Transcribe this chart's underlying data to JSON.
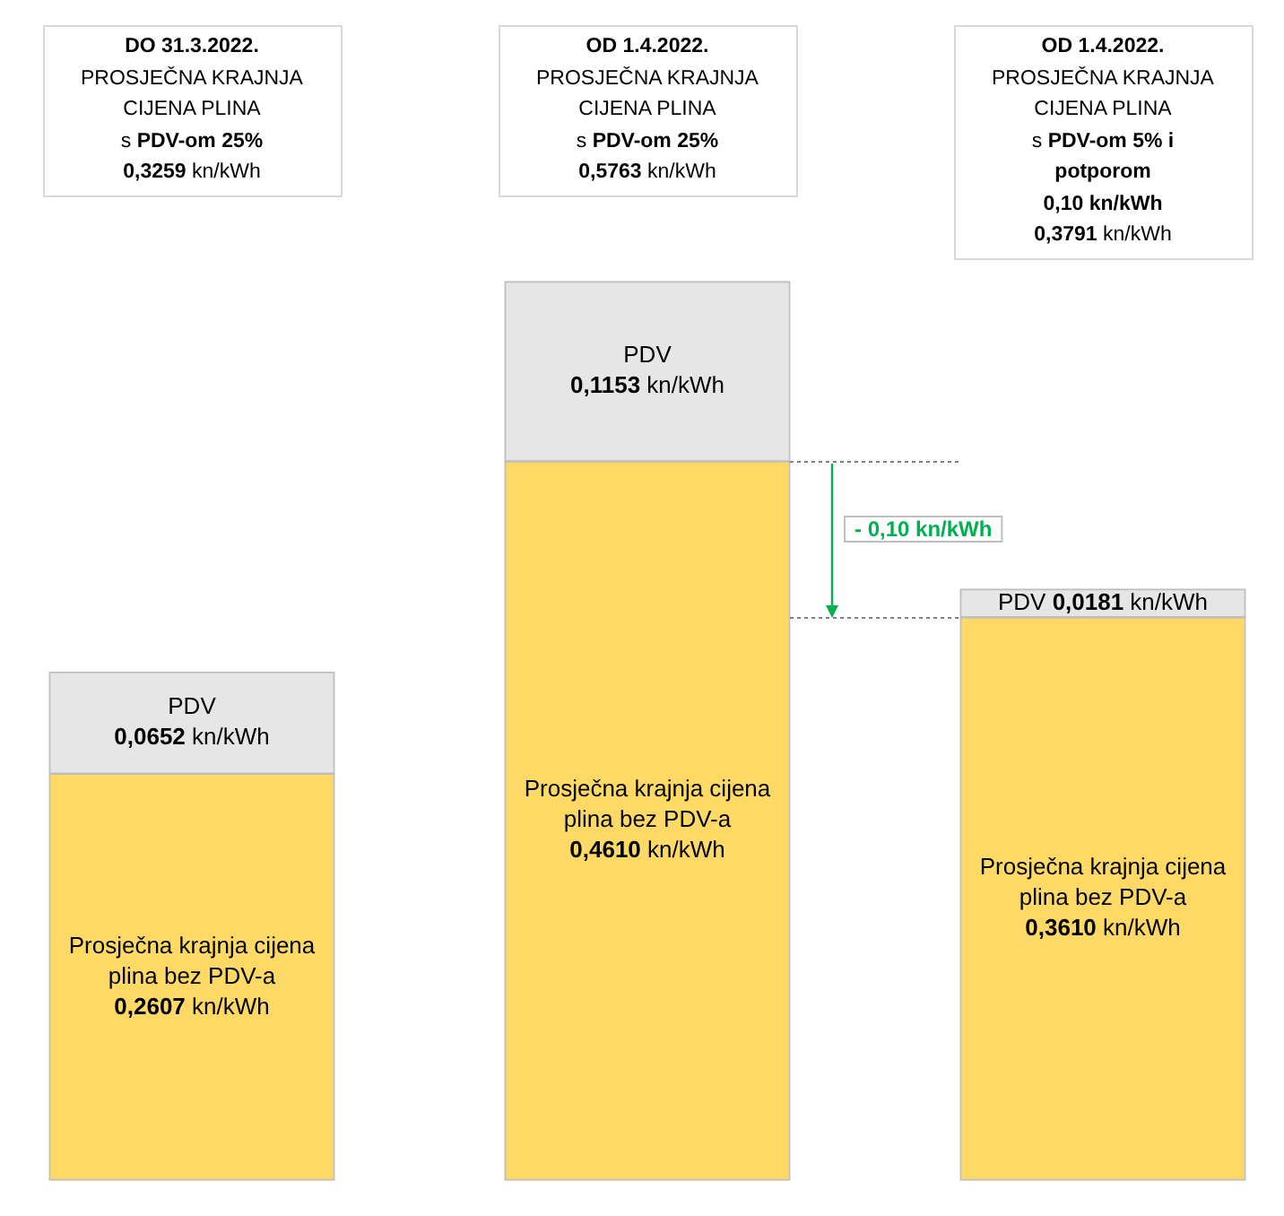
{
  "chart_data": {
    "type": "bar",
    "stacked": true,
    "tick_labels": "x",
    "categories": [
      "DO 31.3.2022.\nPROSJEČNA KRAJNJA\nCIJENA PLINA\ns PDV-om 25%\n0,3259 kn/kWh",
      "OD 1.4.2022.\nPROSJEČNA KRAJNJA\nCIJENA PLINA\ns PDV-om 25%\n0,5763 kn/kWh",
      "OD 1.4.2022.\nPROSJEČNA KRAJNJA\nCIJENA PLINA\ns PDV-om 5% i\npotporom\n0,10 kn/kWh\n0,3791 kn/kWh"
    ],
    "series": [
      {
        "name": "Prosječna krajnja cijena plina bez PDV-a",
        "color": "#ffd966",
        "values": [
          0.2607,
          0.461,
          0.361
        ],
        "value_labels": [
          "0,2607 kn/kWh",
          "0,4610 kn/kWh",
          "0,3610 kn/kWh"
        ]
      },
      {
        "name": "PDV",
        "color": "#e7e6e6",
        "values": [
          0.0652,
          0.1153,
          0.0181
        ],
        "value_labels": [
          "0,0652 kn/kWh",
          "0,1153 kn/kWh",
          "0,0181 kn/kWh"
        ]
      }
    ],
    "ref_lines": [
      {
        "axis": "y",
        "value": 0.461,
        "color": "#7f7f7f",
        "line_style": "dotted"
      },
      {
        "axis": "y",
        "value": 0.361,
        "color": "#7f7f7f",
        "line_style": "dotted"
      }
    ],
    "annotations": [
      "- 0,10 kn/kWh"
    ]
  }
}
